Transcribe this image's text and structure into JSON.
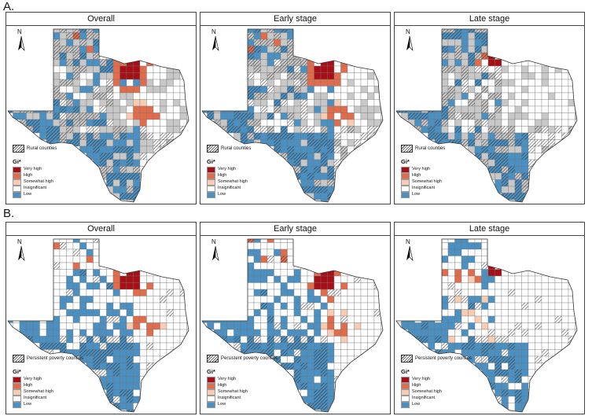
{
  "sections": [
    {
      "label": "A.",
      "hatch_label": "Rural counties",
      "panels": [
        {
          "title": "Overall",
          "variant": "a_overall"
        },
        {
          "title": "Early stage",
          "variant": "a_early"
        },
        {
          "title": "Late stage",
          "variant": "a_late"
        }
      ]
    },
    {
      "label": "B.",
      "hatch_label": "Persistent poverty counties",
      "panels": [
        {
          "title": "Overall",
          "variant": "b_overall"
        },
        {
          "title": "Early stage",
          "variant": "b_early"
        },
        {
          "title": "Late stage",
          "variant": "b_late"
        }
      ]
    }
  ],
  "north_label": "N",
  "legend": {
    "title": "Gi*",
    "items": [
      {
        "label": "Very high",
        "color": "#a50f15"
      },
      {
        "label": "High",
        "color": "#e06c4c"
      },
      {
        "label": "Somewhat high",
        "color": "#f8cbb3"
      },
      {
        "label": "Insignificant",
        "color": "#ffffff"
      },
      {
        "label": "Low",
        "color": "#4a90c2"
      }
    ]
  },
  "colors": {
    "very_high": "#a50f15",
    "high": "#e06c4c",
    "somewhat_high": "#f8cbb3",
    "insignificant": "#ffffff",
    "low": "#4a90c2",
    "rural_fill": "#c8c8c8",
    "outline": "#555555"
  }
}
